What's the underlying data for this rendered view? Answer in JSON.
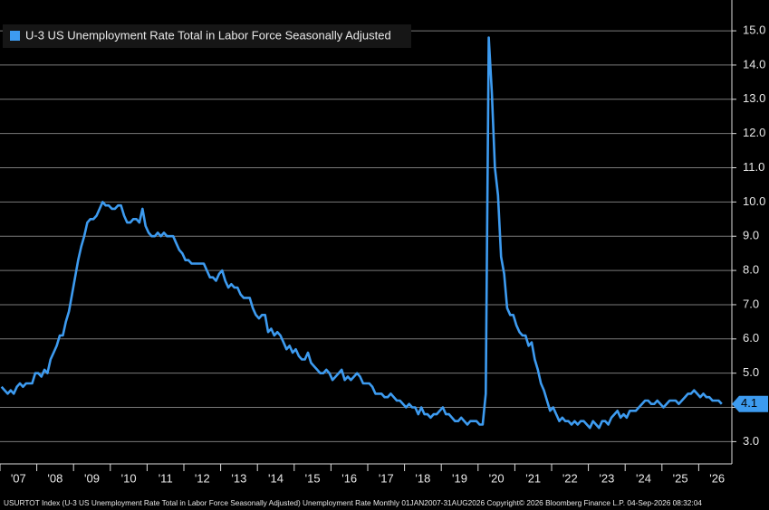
{
  "chart_data": {
    "type": "line",
    "categories": [
      "'07",
      "'08",
      "'09",
      "'10",
      "'11",
      "'12",
      "'13",
      "'14",
      "'15",
      "'16",
      "'17",
      "'18",
      "'19",
      "'20",
      "'21",
      "'22",
      "'23",
      "'24",
      "'25",
      "'26"
    ],
    "series": [
      {
        "name": "U-3 US Unemployment Rate Total in Labor Force Seasonally Adjusted",
        "color": "#3d9bf0",
        "values": [
          [
            4.6,
            4.5,
            4.4,
            4.5,
            4.4,
            4.6,
            4.7,
            4.6,
            4.7,
            4.7,
            4.7,
            5.0
          ],
          [
            5.0,
            4.9,
            5.1,
            5.0,
            5.4,
            5.6,
            5.8,
            6.1,
            6.1,
            6.5,
            6.8,
            7.3
          ],
          [
            7.8,
            8.3,
            8.7,
            9.0,
            9.4,
            9.5,
            9.5,
            9.6,
            9.8,
            10.0,
            9.9,
            9.9
          ],
          [
            9.8,
            9.8,
            9.9,
            9.9,
            9.6,
            9.4,
            9.4,
            9.5,
            9.5,
            9.4,
            9.8,
            9.3
          ],
          [
            9.1,
            9.0,
            9.0,
            9.1,
            9.0,
            9.1,
            9.0,
            9.0,
            9.0,
            8.8,
            8.6,
            8.5
          ],
          [
            8.3,
            8.3,
            8.2,
            8.2,
            8.2,
            8.2,
            8.2,
            8.0,
            7.8,
            7.8,
            7.7,
            7.9
          ],
          [
            8.0,
            7.7,
            7.5,
            7.6,
            7.5,
            7.5,
            7.3,
            7.2,
            7.2,
            7.2,
            6.9,
            6.7
          ],
          [
            6.6,
            6.7,
            6.7,
            6.2,
            6.3,
            6.1,
            6.2,
            6.1,
            5.9,
            5.7,
            5.8,
            5.6
          ],
          [
            5.7,
            5.5,
            5.4,
            5.4,
            5.6,
            5.3,
            5.2,
            5.1,
            5.0,
            5.0,
            5.1,
            5.0
          ],
          [
            4.8,
            4.9,
            5.0,
            5.1,
            4.8,
            4.9,
            4.8,
            4.9,
            5.0,
            4.9,
            4.7,
            4.7
          ],
          [
            4.7,
            4.6,
            4.4,
            4.4,
            4.4,
            4.3,
            4.3,
            4.4,
            4.3,
            4.2,
            4.2,
            4.1
          ],
          [
            4.0,
            4.1,
            4.0,
            4.0,
            3.8,
            4.0,
            3.8,
            3.8,
            3.7,
            3.8,
            3.8,
            3.9
          ],
          [
            4.0,
            3.8,
            3.8,
            3.7,
            3.6,
            3.6,
            3.7,
            3.6,
            3.5,
            3.6,
            3.6,
            3.6
          ],
          [
            3.5,
            3.5,
            4.4,
            14.8,
            13.2,
            11.0,
            10.2,
            8.4,
            7.9,
            6.9,
            6.7,
            6.7
          ],
          [
            6.4,
            6.2,
            6.1,
            6.1,
            5.8,
            5.9,
            5.4,
            5.1,
            4.7,
            4.5,
            4.2,
            3.9
          ],
          [
            4.0,
            3.8,
            3.6,
            3.7,
            3.6,
            3.6,
            3.5,
            3.6,
            3.5,
            3.6,
            3.6,
            3.5
          ],
          [
            3.4,
            3.6,
            3.5,
            3.4,
            3.6,
            3.6,
            3.5,
            3.7,
            3.8,
            3.9,
            3.7,
            3.8
          ],
          [
            3.7,
            3.9,
            3.9,
            3.9,
            4.0,
            4.1,
            4.2,
            4.2,
            4.1,
            4.1,
            4.2,
            4.1
          ],
          [
            4.0,
            4.1,
            4.2,
            4.2,
            4.2,
            4.1,
            4.2,
            4.3,
            4.4,
            4.4,
            4.5,
            4.4
          ],
          [
            4.3,
            4.4,
            4.3,
            4.3,
            4.2,
            4.2,
            4.2,
            4.1
          ]
        ]
      }
    ],
    "ylim": [
      2.35,
      15.9
    ],
    "yticks": [
      {
        "value": 3,
        "label": "3.0"
      },
      {
        "value": 4,
        "label": "4.0"
      },
      {
        "value": 5,
        "label": "5.0"
      },
      {
        "value": 6,
        "label": "6.0"
      },
      {
        "value": 7,
        "label": "7.0"
      },
      {
        "value": 8,
        "label": "8.0"
      },
      {
        "value": 9,
        "label": "9.0"
      },
      {
        "value": 10,
        "label": "10.0"
      },
      {
        "value": 11,
        "label": "11.0"
      },
      {
        "value": 12,
        "label": "12.0"
      },
      {
        "value": 13,
        "label": "13.0"
      },
      {
        "value": 14,
        "label": "14.0"
      },
      {
        "value": 15,
        "label": "15.0"
      }
    ],
    "grid": true,
    "footer": "USURTOT Index (U-3 US Unemployment Rate Total in Labor Force Seasonally Adjusted) Unemployment Rate Monthly 01JAN2007-31AUG2026  Copyright© 2026 Bloomberg Finance L.P.  04-Sep-2026 08:32:04"
  }
}
